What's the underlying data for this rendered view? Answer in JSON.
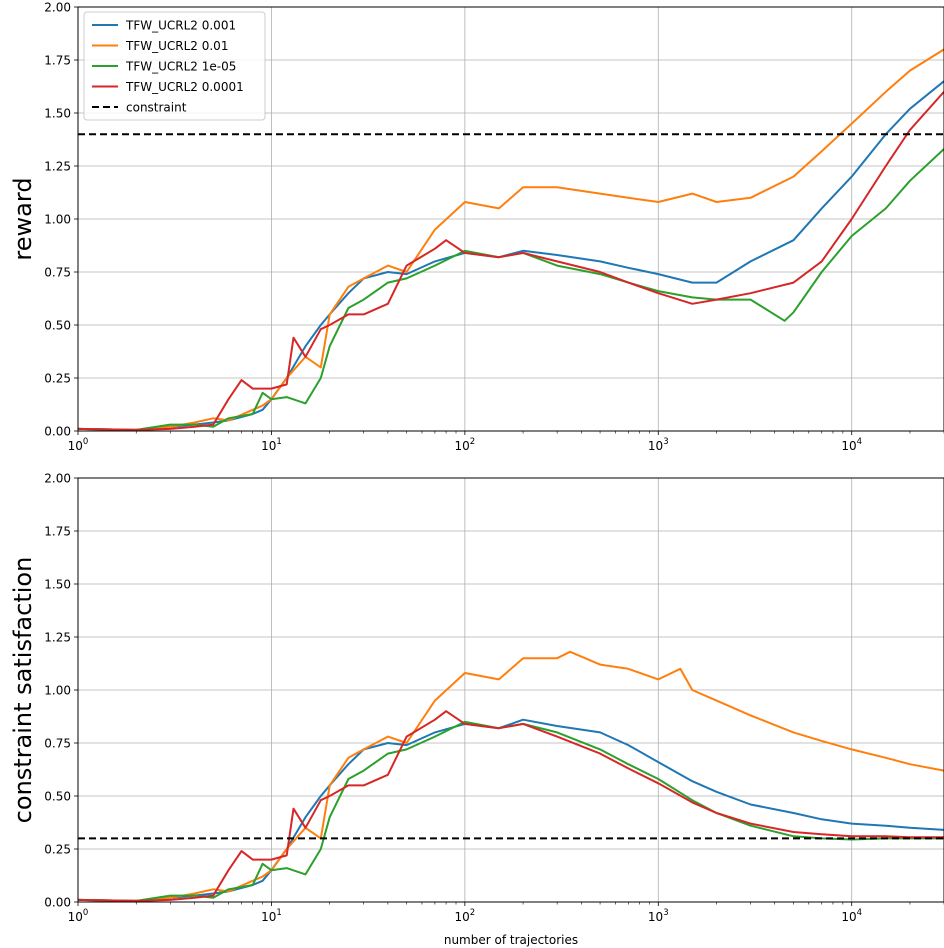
{
  "chart_data": [
    {
      "type": "line",
      "ylabel": "reward",
      "xlabel": "",
      "xscale": "log",
      "xlim": [
        1,
        30000
      ],
      "ylim": [
        0,
        2.0
      ],
      "yticks": [
        "0.00",
        "0.25",
        "0.50",
        "0.75",
        "1.00",
        "1.25",
        "1.50",
        "1.75",
        "2.00"
      ],
      "xticks": [
        {
          "base": "10",
          "exp": "0"
        },
        {
          "base": "10",
          "exp": "1"
        },
        {
          "base": "10",
          "exp": "2"
        },
        {
          "base": "10",
          "exp": "3"
        },
        {
          "base": "10",
          "exp": "4"
        }
      ],
      "grid": true,
      "legend": "top-left",
      "legend_entries": [
        "TFW_UCRL2 0.001",
        "TFW_UCRL2 0.01",
        "TFW_UCRL2 1e-05",
        "TFW_UCRL2 0.0001",
        "constraint"
      ],
      "constraint": {
        "name": "constraint",
        "y": 1.4
      },
      "series": [
        {
          "name": "TFW_UCRL2 0.001",
          "color": "#1f77b4",
          "x": [
            1,
            2,
            3,
            4,
            5,
            6,
            8,
            9,
            10,
            12,
            15,
            18,
            20,
            25,
            30,
            40,
            50,
            70,
            100,
            150,
            200,
            300,
            500,
            700,
            1000,
            1500,
            2000,
            3000,
            5000,
            7000,
            10000,
            15000,
            20000,
            30000
          ],
          "y": [
            0.01,
            0.005,
            0.02,
            0.03,
            0.04,
            0.05,
            0.08,
            0.1,
            0.15,
            0.25,
            0.4,
            0.5,
            0.55,
            0.65,
            0.72,
            0.75,
            0.74,
            0.8,
            0.84,
            0.82,
            0.85,
            0.83,
            0.8,
            0.77,
            0.74,
            0.7,
            0.7,
            0.8,
            0.9,
            1.05,
            1.2,
            1.4,
            1.52,
            1.65
          ]
        },
        {
          "name": "TFW_UCRL2 0.01",
          "color": "#ff7f0e",
          "x": [
            1,
            2,
            3,
            4,
            5,
            6,
            8,
            9,
            10,
            12,
            15,
            18,
            20,
            25,
            30,
            40,
            50,
            70,
            100,
            150,
            200,
            300,
            500,
            700,
            1000,
            1500,
            2000,
            3000,
            5000,
            7000,
            10000,
            15000,
            20000,
            30000
          ],
          "y": [
            0.01,
            0.005,
            0.02,
            0.04,
            0.06,
            0.05,
            0.1,
            0.12,
            0.15,
            0.25,
            0.35,
            0.3,
            0.55,
            0.68,
            0.72,
            0.78,
            0.75,
            0.95,
            1.08,
            1.05,
            1.15,
            1.15,
            1.12,
            1.1,
            1.08,
            1.12,
            1.08,
            1.1,
            1.2,
            1.32,
            1.45,
            1.6,
            1.7,
            1.8
          ]
        },
        {
          "name": "TFW_UCRL2 1e-05",
          "color": "#2ca02c",
          "x": [
            1,
            2,
            3,
            4,
            5,
            6,
            8,
            9,
            10,
            12,
            15,
            18,
            20,
            25,
            30,
            40,
            50,
            70,
            100,
            150,
            200,
            300,
            500,
            700,
            1000,
            1500,
            2000,
            3000,
            4500,
            5000,
            7000,
            10000,
            15000,
            20000,
            30000
          ],
          "y": [
            0.01,
            0.005,
            0.03,
            0.03,
            0.02,
            0.06,
            0.08,
            0.18,
            0.15,
            0.16,
            0.13,
            0.25,
            0.4,
            0.58,
            0.62,
            0.7,
            0.72,
            0.78,
            0.85,
            0.82,
            0.84,
            0.78,
            0.74,
            0.7,
            0.66,
            0.63,
            0.62,
            0.62,
            0.52,
            0.56,
            0.75,
            0.92,
            1.05,
            1.18,
            1.33
          ]
        },
        {
          "name": "TFW_UCRL2 0.0001",
          "color": "#d62728",
          "x": [
            1,
            2,
            3,
            4,
            5,
            6,
            7,
            8,
            10,
            12,
            13,
            15,
            18,
            20,
            25,
            30,
            40,
            50,
            70,
            80,
            100,
            150,
            200,
            300,
            500,
            700,
            1000,
            1500,
            2000,
            3000,
            5000,
            7000,
            10000,
            15000,
            20000,
            30000
          ],
          "y": [
            0.01,
            0.005,
            0.01,
            0.02,
            0.03,
            0.15,
            0.24,
            0.2,
            0.2,
            0.22,
            0.44,
            0.35,
            0.48,
            0.5,
            0.55,
            0.55,
            0.6,
            0.78,
            0.86,
            0.9,
            0.84,
            0.82,
            0.84,
            0.8,
            0.75,
            0.7,
            0.65,
            0.6,
            0.62,
            0.65,
            0.7,
            0.8,
            1.0,
            1.25,
            1.42,
            1.6
          ]
        }
      ]
    },
    {
      "type": "line",
      "ylabel": "constraint satisfaction",
      "xlabel": "number of trajectories",
      "xscale": "log",
      "xlim": [
        1,
        30000
      ],
      "ylim": [
        0,
        2.0
      ],
      "yticks": [
        "0.00",
        "0.25",
        "0.50",
        "0.75",
        "1.00",
        "1.25",
        "1.50",
        "1.75",
        "2.00"
      ],
      "xticks": [
        {
          "base": "10",
          "exp": "0"
        },
        {
          "base": "10",
          "exp": "1"
        },
        {
          "base": "10",
          "exp": "2"
        },
        {
          "base": "10",
          "exp": "3"
        },
        {
          "base": "10",
          "exp": "4"
        }
      ],
      "grid": true,
      "constraint": {
        "name": "constraint",
        "y": 0.3
      },
      "series": [
        {
          "name": "TFW_UCRL2 0.001",
          "color": "#1f77b4",
          "x": [
            1,
            2,
            3,
            4,
            5,
            6,
            8,
            9,
            10,
            12,
            15,
            18,
            20,
            25,
            30,
            40,
            50,
            70,
            100,
            150,
            200,
            300,
            500,
            700,
            1000,
            1500,
            2000,
            3000,
            5000,
            7000,
            10000,
            15000,
            20000,
            30000
          ],
          "y": [
            0.01,
            0.005,
            0.02,
            0.03,
            0.04,
            0.05,
            0.08,
            0.1,
            0.15,
            0.25,
            0.4,
            0.5,
            0.55,
            0.65,
            0.72,
            0.75,
            0.74,
            0.8,
            0.84,
            0.82,
            0.86,
            0.83,
            0.8,
            0.74,
            0.66,
            0.57,
            0.52,
            0.46,
            0.42,
            0.39,
            0.37,
            0.36,
            0.35,
            0.34
          ]
        },
        {
          "name": "TFW_UCRL2 0.01",
          "color": "#ff7f0e",
          "x": [
            1,
            2,
            3,
            4,
            5,
            6,
            8,
            9,
            10,
            12,
            15,
            18,
            20,
            25,
            30,
            40,
            50,
            70,
            100,
            150,
            200,
            300,
            350,
            500,
            700,
            1000,
            1300,
            1500,
            2000,
            3000,
            5000,
            7000,
            10000,
            15000,
            20000,
            30000
          ],
          "y": [
            0.01,
            0.005,
            0.02,
            0.04,
            0.06,
            0.05,
            0.1,
            0.12,
            0.15,
            0.25,
            0.35,
            0.3,
            0.55,
            0.68,
            0.72,
            0.78,
            0.75,
            0.95,
            1.08,
            1.05,
            1.15,
            1.15,
            1.18,
            1.12,
            1.1,
            1.05,
            1.1,
            1.0,
            0.95,
            0.88,
            0.8,
            0.76,
            0.72,
            0.68,
            0.65,
            0.62
          ]
        },
        {
          "name": "TFW_UCRL2 1e-05",
          "color": "#2ca02c",
          "x": [
            1,
            2,
            3,
            4,
            5,
            6,
            8,
            9,
            10,
            12,
            15,
            18,
            20,
            25,
            30,
            40,
            50,
            70,
            100,
            150,
            200,
            300,
            500,
            700,
            1000,
            1500,
            2000,
            3000,
            5000,
            7000,
            10000,
            15000,
            20000,
            30000
          ],
          "y": [
            0.01,
            0.005,
            0.03,
            0.03,
            0.02,
            0.06,
            0.08,
            0.18,
            0.15,
            0.16,
            0.13,
            0.25,
            0.4,
            0.58,
            0.62,
            0.7,
            0.72,
            0.78,
            0.85,
            0.82,
            0.84,
            0.8,
            0.72,
            0.65,
            0.58,
            0.48,
            0.42,
            0.36,
            0.31,
            0.3,
            0.295,
            0.3,
            0.3,
            0.3
          ]
        },
        {
          "name": "TFW_UCRL2 0.0001",
          "color": "#d62728",
          "x": [
            1,
            2,
            3,
            4,
            5,
            6,
            7,
            8,
            10,
            12,
            13,
            15,
            18,
            20,
            25,
            30,
            40,
            50,
            70,
            80,
            100,
            150,
            200,
            300,
            500,
            700,
            1000,
            1500,
            2000,
            3000,
            5000,
            7000,
            10000,
            15000,
            20000,
            30000
          ],
          "y": [
            0.01,
            0.005,
            0.01,
            0.02,
            0.03,
            0.15,
            0.24,
            0.2,
            0.2,
            0.22,
            0.44,
            0.35,
            0.48,
            0.5,
            0.55,
            0.55,
            0.6,
            0.78,
            0.86,
            0.9,
            0.84,
            0.82,
            0.84,
            0.78,
            0.7,
            0.63,
            0.56,
            0.47,
            0.42,
            0.37,
            0.33,
            0.32,
            0.31,
            0.31,
            0.305,
            0.305
          ]
        }
      ]
    }
  ]
}
